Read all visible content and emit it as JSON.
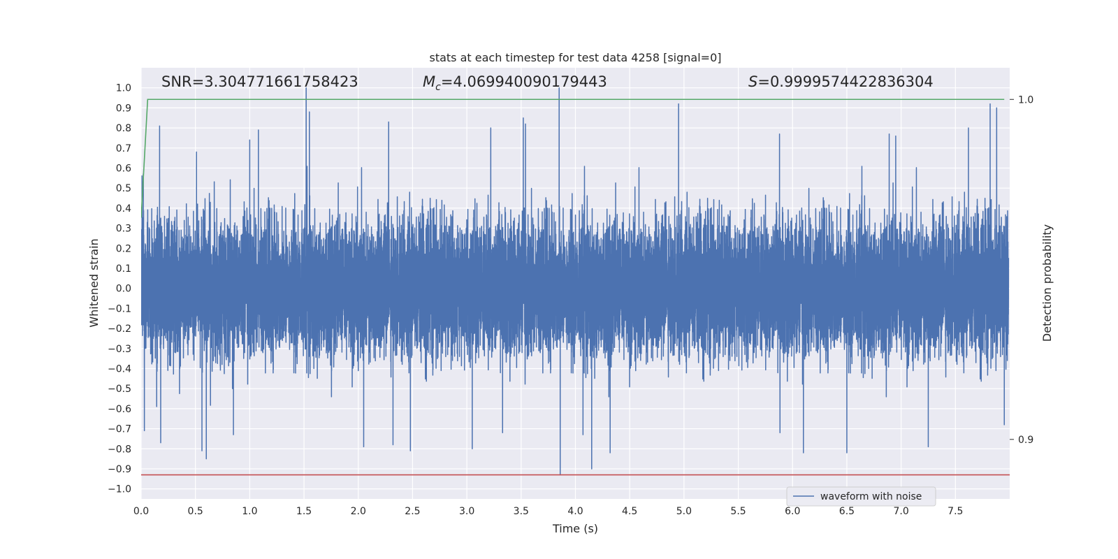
{
  "chart_data": {
    "type": "line",
    "title": "stats at each timestep for test data 4258 [signal=0]",
    "xlabel": "Time (s)",
    "ylabel": "Whitened strain",
    "y2label": "Detection probability",
    "xlim": [
      0.0,
      8.0
    ],
    "ylim": [
      -1.05,
      1.1
    ],
    "y2lim": [
      0.8825,
      1.0093
    ],
    "x_ticks": [
      "0.0",
      "0.5",
      "1.0",
      "1.5",
      "2.0",
      "2.5",
      "3.0",
      "3.5",
      "4.0",
      "4.5",
      "5.0",
      "5.5",
      "6.0",
      "6.5",
      "7.0",
      "7.5"
    ],
    "y_ticks": [
      "1.0",
      "0.9",
      "0.8",
      "0.7",
      "0.6",
      "0.5",
      "0.4",
      "0.3",
      "0.2",
      "0.1",
      "0.0",
      "−0.1",
      "−0.2",
      "−0.3",
      "−0.4",
      "−0.5",
      "−0.6",
      "−0.7",
      "−0.8",
      "−0.9",
      "−1.0"
    ],
    "y2_ticks": [
      "1.0",
      "0.9"
    ],
    "grid": true,
    "legend_position": "lower-right",
    "annotations": {
      "snr": "SNR=3.304771661758423",
      "mc_symbol": "M",
      "mc_sub": "c",
      "mc_value": "=4.069940090179443",
      "s_symbol": "S",
      "s_value": "=0.9999574422836304"
    },
    "series": [
      {
        "name": "waveform with noise",
        "axis": "left",
        "color": "#4c72b0",
        "sample_rate_hz": 2048,
        "duration_s": 7.99,
        "envelope_typical_abs": 0.35,
        "peaks": [
          {
            "x": 0.02,
            "y": 0.57
          },
          {
            "x": 0.03,
            "y": -0.71
          },
          {
            "x": 0.17,
            "y": 0.81
          },
          {
            "x": 0.18,
            "y": -0.77
          },
          {
            "x": 0.51,
            "y": 0.68
          },
          {
            "x": 0.56,
            "y": -0.81
          },
          {
            "x": 0.6,
            "y": -0.85
          },
          {
            "x": 0.85,
            "y": -0.73
          },
          {
            "x": 1.0,
            "y": 0.74
          },
          {
            "x": 1.08,
            "y": 0.79
          },
          {
            "x": 1.52,
            "y": 1.0
          },
          {
            "x": 1.55,
            "y": 0.88
          },
          {
            "x": 2.05,
            "y": -0.79
          },
          {
            "x": 2.28,
            "y": 0.83
          },
          {
            "x": 2.32,
            "y": -0.78
          },
          {
            "x": 2.48,
            "y": -0.81
          },
          {
            "x": 3.05,
            "y": -0.8
          },
          {
            "x": 3.22,
            "y": 0.8
          },
          {
            "x": 3.52,
            "y": 0.85
          },
          {
            "x": 3.54,
            "y": 0.82
          },
          {
            "x": 3.85,
            "y": 1.0
          },
          {
            "x": 3.86,
            "y": -0.93
          },
          {
            "x": 4.07,
            "y": -0.73
          },
          {
            "x": 4.15,
            "y": -0.9
          },
          {
            "x": 4.32,
            "y": -0.82
          },
          {
            "x": 4.95,
            "y": 0.92
          },
          {
            "x": 5.88,
            "y": 0.77
          },
          {
            "x": 6.1,
            "y": -0.82
          },
          {
            "x": 6.5,
            "y": -0.82
          },
          {
            "x": 6.89,
            "y": 0.77
          },
          {
            "x": 6.95,
            "y": 0.76
          },
          {
            "x": 7.25,
            "y": -0.79
          },
          {
            "x": 7.62,
            "y": 0.8
          },
          {
            "x": 7.82,
            "y": 0.92
          },
          {
            "x": 7.88,
            "y": 0.9
          },
          {
            "x": 7.95,
            "y": -0.68
          }
        ]
      },
      {
        "axis": "right",
        "color": "#55a868",
        "x": [
          0.0,
          0.06,
          7.95
        ],
        "y": [
          0.9652,
          1.0,
          1.0
        ]
      },
      {
        "axis": "left",
        "color": "#c44e52",
        "x": [
          0.0,
          8.0
        ],
        "y": [
          -0.93,
          -0.93
        ]
      }
    ]
  }
}
